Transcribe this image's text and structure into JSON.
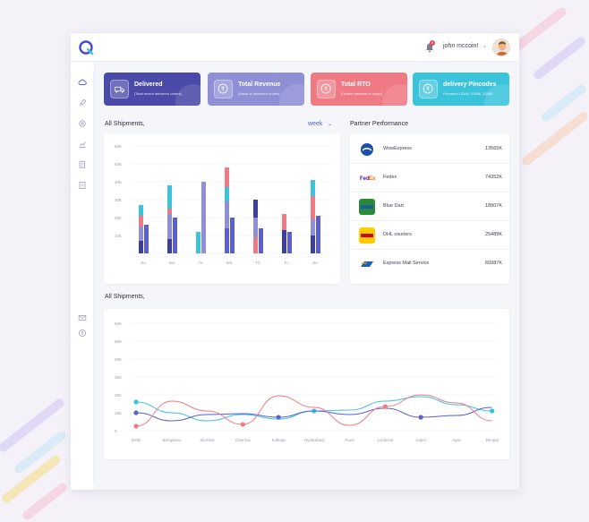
{
  "header": {
    "username": "john mccoin!",
    "notification_count": "3"
  },
  "sidebar": {
    "icons": [
      "cloud-icon",
      "rocket-icon",
      "settings-icon",
      "chart-icon",
      "report-icon",
      "document-icon",
      "mail-icon",
      "currency-icon"
    ]
  },
  "stats": [
    {
      "title": "Delivered",
      "subtitle": "[Total recent delivered orders]",
      "color": "#4a4aa8",
      "icon": "truck-icon"
    },
    {
      "title": "Total Revenue",
      "subtitle": "[Value of delivered orders]",
      "color": "#8f8fd6",
      "icon": "rupee-icon"
    },
    {
      "title": "Total RTO",
      "subtitle": "[Orders returned to origin]",
      "color": "#f07a83",
      "icon": "rupee-icon"
    },
    {
      "title": "delivery Pincodes",
      "subtitle": "Pincodes 12345, 23456, 23456",
      "color": "#3cc3dc",
      "icon": "rupee-icon"
    }
  ],
  "shipments_bar": {
    "title": "All Shipments,",
    "period": "week"
  },
  "partners": {
    "title": "Partner Performance",
    "rows": [
      {
        "name": "WowExpress",
        "value": "13565K",
        "logo_color": "#1e4fa8",
        "icon": "wowexpress-logo"
      },
      {
        "name": "Fedex",
        "value": "74352K",
        "logo_color": "#4d148c",
        "icon": "fedex-logo"
      },
      {
        "name": "Blue Dart",
        "value": "18907K",
        "logo_color": "#2a8a3a",
        "icon": "bluedart-logo"
      },
      {
        "name": "DHL couriers",
        "value": "25489K",
        "logo_color": "#ffcc00",
        "icon": "dhl-logo"
      },
      {
        "name": "Express Mail Service",
        "value": "65987K",
        "logo_color": "#1a5fb4",
        "icon": "ems-logo"
      }
    ]
  },
  "shipments_line": {
    "title": "All Shipments,"
  },
  "chart_data": [
    {
      "type": "bar",
      "categories": [
        "Su",
        "Mo",
        "Tu",
        "We",
        "Th",
        "Fr",
        "Sa"
      ],
      "ylim": [
        0,
        60000
      ],
      "yticks": [
        "10K",
        "20K",
        "30K",
        "40K",
        "50K",
        "60K"
      ],
      "grid": true,
      "groups": [
        {
          "day": "Su",
          "bars": [
            {
              "segments": [
                {
                  "value": 7000,
                  "color": "#3d3d9e"
                },
                {
                  "value": 8000,
                  "color": "#8f8fd6"
                },
                {
                  "value": 6000,
                  "color": "#f07a83"
                },
                {
                  "value": 6000,
                  "color": "#3cc3dc"
                }
              ]
            },
            {
              "segments": [
                {
                  "value": 16000,
                  "color": "#5b5fd0"
                }
              ]
            }
          ]
        },
        {
          "day": "Mo",
          "bars": [
            {
              "segments": [
                {
                  "value": 8000,
                  "color": "#3d3d9e"
                },
                {
                  "value": 14000,
                  "color": "#8f8fd6"
                },
                {
                  "value": 3000,
                  "color": "#f07a83"
                },
                {
                  "value": 13000,
                  "color": "#3cc3dc"
                }
              ]
            },
            {
              "segments": [
                {
                  "value": 20000,
                  "color": "#5b5fd0"
                }
              ]
            }
          ]
        },
        {
          "day": "Tu",
          "bars": [
            {
              "segments": [
                {
                  "value": 12000,
                  "color": "#3cc3dc"
                }
              ]
            },
            {
              "segments": [
                {
                  "value": 40000,
                  "color": "#8f8fd6"
                }
              ]
            }
          ]
        },
        {
          "day": "We",
          "bars": [
            {
              "segments": [
                {
                  "value": 14000,
                  "color": "#5b5fd0"
                },
                {
                  "value": 15000,
                  "color": "#8f8fd6"
                },
                {
                  "value": 8000,
                  "color": "#3cc3dc"
                },
                {
                  "value": 11000,
                  "color": "#f07a83"
                }
              ]
            },
            {
              "segments": [
                {
                  "value": 20000,
                  "color": "#5b5fd0"
                }
              ]
            }
          ]
        },
        {
          "day": "Th",
          "bars": [
            {
              "segments": [
                {
                  "value": 9000,
                  "color": "#f07a83"
                },
                {
                  "value": 11000,
                  "color": "#8f8fd6"
                },
                {
                  "value": 10000,
                  "color": "#3d3d9e"
                }
              ]
            },
            {
              "segments": [
                {
                  "value": 14000,
                  "color": "#5b5fd0"
                }
              ]
            }
          ]
        },
        {
          "day": "Fr",
          "bars": [
            {
              "segments": [
                {
                  "value": 13000,
                  "color": "#3d3d9e"
                },
                {
                  "value": 9000,
                  "color": "#f07a83"
                }
              ]
            },
            {
              "segments": [
                {
                  "value": 12000,
                  "color": "#5b5fd0"
                }
              ]
            }
          ]
        },
        {
          "day": "Sa",
          "bars": [
            {
              "segments": [
                {
                  "value": 10000,
                  "color": "#3d3d9e"
                },
                {
                  "value": 9000,
                  "color": "#8f8fd6"
                },
                {
                  "value": 13000,
                  "color": "#f07a83"
                },
                {
                  "value": 9000,
                  "color": "#3cc3dc"
                }
              ]
            },
            {
              "segments": [
                {
                  "value": 21000,
                  "color": "#5b5fd0"
                }
              ]
            }
          ]
        }
      ]
    },
    {
      "type": "line",
      "categories": [
        "Delhi",
        "Bengaluru",
        "Mumbai",
        "Chennai",
        "Kolkata",
        "Hyderabad",
        "Pune",
        "Lucknow",
        "Jaipur",
        "Agra",
        "Bhopal"
      ],
      "ylim": [
        0,
        60000
      ],
      "yticks": [
        "0",
        "10K",
        "20K",
        "30K",
        "40K",
        "50K",
        "60K"
      ],
      "grid": true,
      "series": [
        {
          "color": "#3cc3dc",
          "values": [
            16000,
            10000,
            5500,
            9000,
            6500,
            11000,
            11500,
            16500,
            19000,
            14500,
            11000
          ],
          "marker_index": [
            0,
            5,
            10
          ]
        },
        {
          "color": "#5b5fd0",
          "values": [
            10000,
            5500,
            9000,
            9500,
            7500,
            11000,
            9000,
            12500,
            7500,
            8500,
            13000
          ],
          "marker_index": [
            0,
            4,
            8
          ]
        },
        {
          "color": "#f07a83",
          "values": [
            2500,
            16500,
            11000,
            3500,
            19500,
            13000,
            3000,
            13500,
            20000,
            15500,
            5500
          ],
          "marker_index": [
            0,
            3,
            7
          ]
        }
      ]
    }
  ]
}
